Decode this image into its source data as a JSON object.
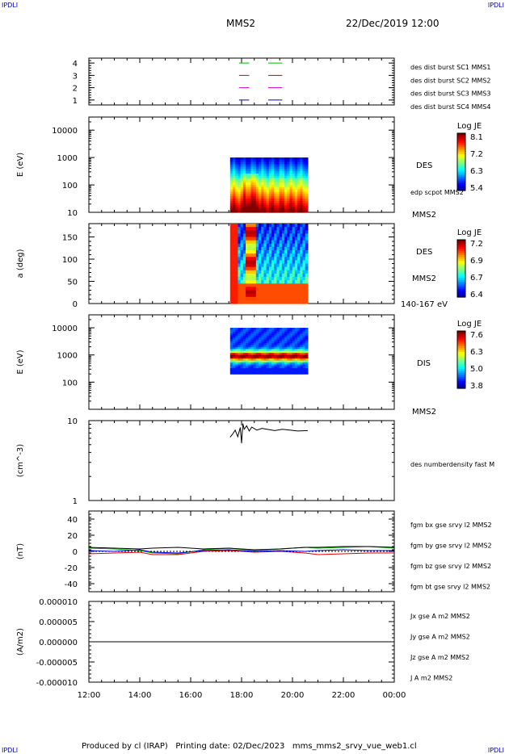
{
  "header": {
    "corner_tl": "IPDLI",
    "corner_tr": "IPDLI",
    "title": "MMS2",
    "datetime": "22/Dec/2019 12:00",
    "footer": "Produced by cl (IRAP)   Printing date: 02/Dec/2023   mms_mms2_srvy_vue_web1.cl",
    "corner_bl": "IPDLI",
    "corner_br": "IPDLI"
  },
  "chart_data": {
    "type": "multi-panel time series",
    "x_tick_labels": [
      "12:00",
      "14:00",
      "16:00",
      "18:00",
      "20:00",
      "22:00",
      "00:00"
    ],
    "x_range_hours": [
      12,
      24
    ],
    "panels": [
      {
        "id": "burst",
        "ytick_labels": [
          "4",
          "3",
          "2",
          "1"
        ],
        "yticks": [
          4,
          3,
          2,
          1
        ],
        "ylim": [
          0.6,
          4.4
        ],
        "legend": [
          {
            "label": "des dist burst SC1 MMS1",
            "color": "#0000cc",
            "level": 1
          },
          {
            "label": "des dist burst SC2 MMS2",
            "color": "#cc00cc",
            "level": 2
          },
          {
            "label": "des dist burst SC3 MMS3",
            "color": "#cc0000",
            "level": 3
          },
          {
            "label": "des dist burst SC4 MMS4",
            "color": "#00bb00",
            "level": 4
          }
        ],
        "intervals_hours": [
          [
            17.9,
            18.3
          ],
          [
            19.05,
            19.6
          ]
        ]
      },
      {
        "id": "des_energy",
        "type": "heatmap",
        "ylabel": "E (eV)",
        "ytick_labels": [
          "10000",
          "1000",
          "100",
          "10"
        ],
        "yticks": [
          10000,
          1000,
          100,
          10
        ],
        "ylim": [
          10,
          30000
        ],
        "yscale": "log",
        "data_hours": [
          17.55,
          20.6
        ],
        "energy_range_eV": [
          10,
          1000
        ],
        "right_labels": [
          "DES",
          "edp scpot MMS2",
          "MMS2"
        ],
        "colorbar": {
          "title": "Log JE",
          "tick_labels": [
            "8.1",
            "7.2",
            "6.3",
            "5.4"
          ]
        }
      },
      {
        "id": "des_pitch",
        "type": "heatmap",
        "ylabel": "a (deg)",
        "ytick_labels": [
          "150",
          "100",
          "50",
          "0"
        ],
        "yticks": [
          150,
          100,
          50,
          0
        ],
        "ylim": [
          0,
          180
        ],
        "data_hours": [
          17.55,
          20.6
        ],
        "right_labels": [
          "DES",
          "MMS2",
          "140-167 eV"
        ],
        "colorbar": {
          "title": "Log JE",
          "tick_labels": [
            "7.2",
            "6.9",
            "6.7",
            "6.4"
          ]
        }
      },
      {
        "id": "dis_energy",
        "type": "heatmap",
        "ylabel": "E (eV)",
        "ytick_labels": [
          "10000",
          "1000",
          "100"
        ],
        "yticks": [
          10000,
          1000,
          100
        ],
        "ylim": [
          10,
          30000
        ],
        "yscale": "log",
        "data_hours": [
          17.55,
          20.6
        ],
        "energy_range_eV": [
          200,
          10000
        ],
        "right_labels": [
          "DIS",
          "MMS2"
        ],
        "colorbar": {
          "title": "Log JE",
          "tick_labels": [
            "7.6",
            "6.3",
            "5.0",
            "3.8"
          ]
        }
      },
      {
        "id": "density",
        "type": "line",
        "ylabel": "(cm^-3)",
        "ytick_labels": [
          "10",
          "1"
        ],
        "yticks": [
          10,
          1
        ],
        "ylim": [
          1,
          10
        ],
        "yscale": "log",
        "legend": [
          {
            "label": "des numberdensity fast M",
            "color": "#000000"
          }
        ],
        "series": [
          {
            "x": [
              17.55,
              17.65,
              17.75,
              17.85,
              17.95,
              18.0,
              18.05,
              18.1,
              18.2,
              18.3,
              18.4,
              18.6,
              18.8,
              19.0,
              19.3,
              19.6,
              19.9,
              20.2,
              20.6
            ],
            "y": [
              6.2,
              6.8,
              7.6,
              6.3,
              8.2,
              5.2,
              9.2,
              7.8,
              8.6,
              7.4,
              8.3,
              7.6,
              8.0,
              7.8,
              7.5,
              7.8,
              7.6,
              7.4,
              7.5
            ]
          }
        ]
      },
      {
        "id": "bfield",
        "type": "line",
        "ylabel": "(nT)",
        "ytick_labels": [
          "40",
          "20",
          "0",
          "-20",
          "-40"
        ],
        "yticks": [
          40,
          20,
          0,
          -20,
          -40
        ],
        "ylim": [
          -50,
          50
        ],
        "legend": [
          {
            "label": "fgm bx gse srvy l2 MMS2",
            "color": "#dd0000"
          },
          {
            "label": "fgm by gse srvy l2 MMS2",
            "color": "#00aa00"
          },
          {
            "label": "fgm bz gse srvy l2 MMS2",
            "color": "#0000dd"
          },
          {
            "label": "fgm bt gse srvy l2 MMS2",
            "color": "#000000"
          }
        ],
        "series": [
          {
            "x": [
              12,
              13,
              14,
              14.5,
              15.5,
              16.5,
              17.5,
              18.5,
              19.5,
              20.5,
              21,
              22,
              23,
              24
            ],
            "y": [
              -3,
              -2,
              -1,
              -4,
              -4,
              0,
              1,
              -1,
              0,
              -2,
              -4,
              -3,
              -2,
              -2
            ]
          },
          {
            "x": [
              12,
              13,
              14,
              14.5,
              15.5,
              16.5,
              17.5,
              18.5,
              19.5,
              20.5,
              21,
              22,
              23,
              24
            ],
            "y": [
              4,
              3,
              1,
              -2,
              -3,
              2,
              4,
              1,
              3,
              5,
              4,
              5,
              6,
              4
            ]
          },
          {
            "x": [
              12,
              13,
              14,
              14.5,
              15.5,
              16.5,
              17.5,
              18.5,
              19.5,
              20.5,
              21,
              22,
              23,
              24
            ],
            "y": [
              1,
              0,
              2,
              -1,
              -2,
              1,
              2,
              0,
              1,
              0,
              1,
              2,
              1,
              1
            ]
          },
          {
            "x": [
              12,
              13,
              14,
              14.5,
              15.5,
              16.5,
              17.5,
              18.5,
              19.5,
              20.5,
              21,
              22,
              23,
              24
            ],
            "y": [
              5,
              4,
              3,
              4,
              5,
              3,
              4,
              2,
              3,
              5,
              5,
              6,
              6,
              5
            ]
          }
        ]
      },
      {
        "id": "current",
        "type": "line",
        "ylabel": "(A/m2)",
        "ytick_labels": [
          "0.000010",
          "0.000005",
          "0.000000",
          "-0.000005",
          "-0.000010"
        ],
        "yticks": [
          1e-05,
          5e-06,
          0,
          -5e-06,
          -1e-05
        ],
        "ylim": [
          -1e-05,
          1e-05
        ],
        "legend": [
          {
            "label": "Jx gse A m2 MMS2",
            "color": "#dd0000"
          },
          {
            "label": "Jy gse A m2 MMS2",
            "color": "#66aa00"
          },
          {
            "label": "Jz gse A m2 MMS2",
            "color": "#0000dd"
          },
          {
            "label": "J A m2 MMS2",
            "color": "#000000"
          }
        ],
        "series": [
          {
            "x": [
              12,
              24
            ],
            "y": [
              0,
              0
            ]
          }
        ]
      }
    ]
  }
}
